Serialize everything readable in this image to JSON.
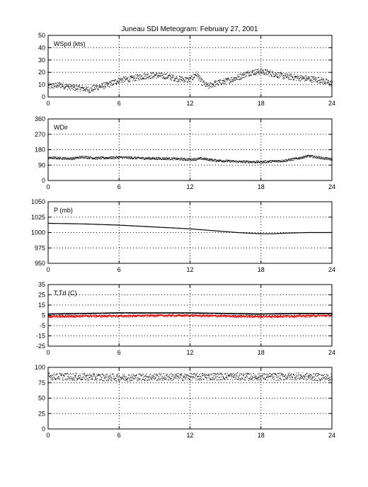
{
  "title": "Juneau SDI Meteogram:  February 27, 2001",
  "chart_data": [
    {
      "type": "scatter",
      "label": "WSpd (kts)",
      "xlim": [
        0,
        24
      ],
      "ylim": [
        0,
        50
      ],
      "xticks": [
        "0",
        "6",
        "12",
        "18",
        "24"
      ],
      "yticks": [
        "0",
        "10",
        "20",
        "30",
        "40",
        "50"
      ],
      "grid": true,
      "series": [
        {
          "color": "#000000",
          "x": [
            0,
            1,
            2,
            3,
            3.5,
            4,
            5,
            6,
            7,
            8,
            9,
            10,
            11,
            12,
            12.5,
            13,
            13.5,
            14,
            15,
            16,
            17,
            18,
            19,
            20,
            21,
            22,
            23,
            24
          ],
          "y": [
            9,
            10,
            8,
            7,
            6,
            8,
            10,
            14,
            15,
            17,
            18,
            17,
            15,
            14,
            19,
            12,
            9,
            11,
            13,
            16,
            20,
            21,
            19,
            17,
            16,
            15,
            14,
            11
          ],
          "spread": 2.5
        }
      ]
    },
    {
      "type": "scatter",
      "label": "WDir",
      "xlim": [
        0,
        24
      ],
      "ylim": [
        0,
        360
      ],
      "xticks": [
        "0",
        "6",
        "12",
        "18",
        "24"
      ],
      "yticks": [
        "0",
        "90",
        "180",
        "270",
        "360"
      ],
      "grid": true,
      "series": [
        {
          "color": "#000000",
          "x": [
            0,
            2,
            3,
            4,
            6,
            8,
            10,
            12,
            13,
            14,
            16,
            18,
            20,
            21,
            22,
            23,
            24
          ],
          "y": [
            135,
            130,
            140,
            132,
            137,
            132,
            130,
            125,
            130,
            120,
            112,
            110,
            118,
            130,
            145,
            135,
            125
          ],
          "spread": 7
        }
      ]
    },
    {
      "type": "line",
      "label": "P (mb)",
      "xlim": [
        0,
        24
      ],
      "ylim": [
        950,
        1050
      ],
      "xticks": [
        "0",
        "6",
        "12",
        "18",
        "24"
      ],
      "yticks": [
        "950",
        "975",
        "1000",
        "1025",
        "1050"
      ],
      "grid": true,
      "series": [
        {
          "color": "#000000",
          "x": [
            0,
            3,
            6,
            8,
            10,
            12,
            14,
            16,
            18,
            19,
            20,
            22,
            24
          ],
          "y": [
            1015,
            1014,
            1012,
            1010,
            1008,
            1006,
            1003,
            1000,
            998,
            998,
            999,
            1000,
            1000
          ],
          "spread": 0
        }
      ]
    },
    {
      "type": "line",
      "label": "T,Td (C)",
      "xlim": [
        0,
        24
      ],
      "ylim": [
        -25,
        35
      ],
      "xticks": [
        "0",
        "6",
        "12",
        "18",
        "24"
      ],
      "yticks": [
        "-25",
        "-15",
        "-5",
        "5",
        "15",
        "25",
        "35"
      ],
      "grid": true,
      "series": [
        {
          "name": "T",
          "color": "#000000",
          "x": [
            0,
            3,
            6,
            9,
            12,
            15,
            18,
            21,
            24
          ],
          "y": [
            6.5,
            7,
            7.5,
            7.5,
            7.5,
            7,
            6.5,
            7,
            7
          ],
          "spread": 0.3
        },
        {
          "name": "Td",
          "color": "#e00000",
          "x": [
            0,
            3,
            6,
            9,
            12,
            15,
            18,
            21,
            24
          ],
          "y": [
            4,
            4.5,
            4.5,
            5,
            5,
            4.5,
            4,
            4.5,
            5
          ],
          "spread": 1.2
        }
      ]
    },
    {
      "type": "scatter",
      "label": "",
      "xlim": [
        0,
        24
      ],
      "ylim": [
        0,
        100
      ],
      "xticks": [
        "0",
        "6",
        "12",
        "18",
        "24"
      ],
      "yticks": [
        "0",
        "25",
        "50",
        "75",
        "100"
      ],
      "grid": true,
      "series": [
        {
          "color": "#000000",
          "x": [
            0,
            3,
            6,
            9,
            12,
            15,
            18,
            21,
            24
          ],
          "y": [
            86,
            85,
            84,
            85,
            85,
            86,
            85,
            86,
            84
          ],
          "spread": 6
        }
      ]
    }
  ]
}
